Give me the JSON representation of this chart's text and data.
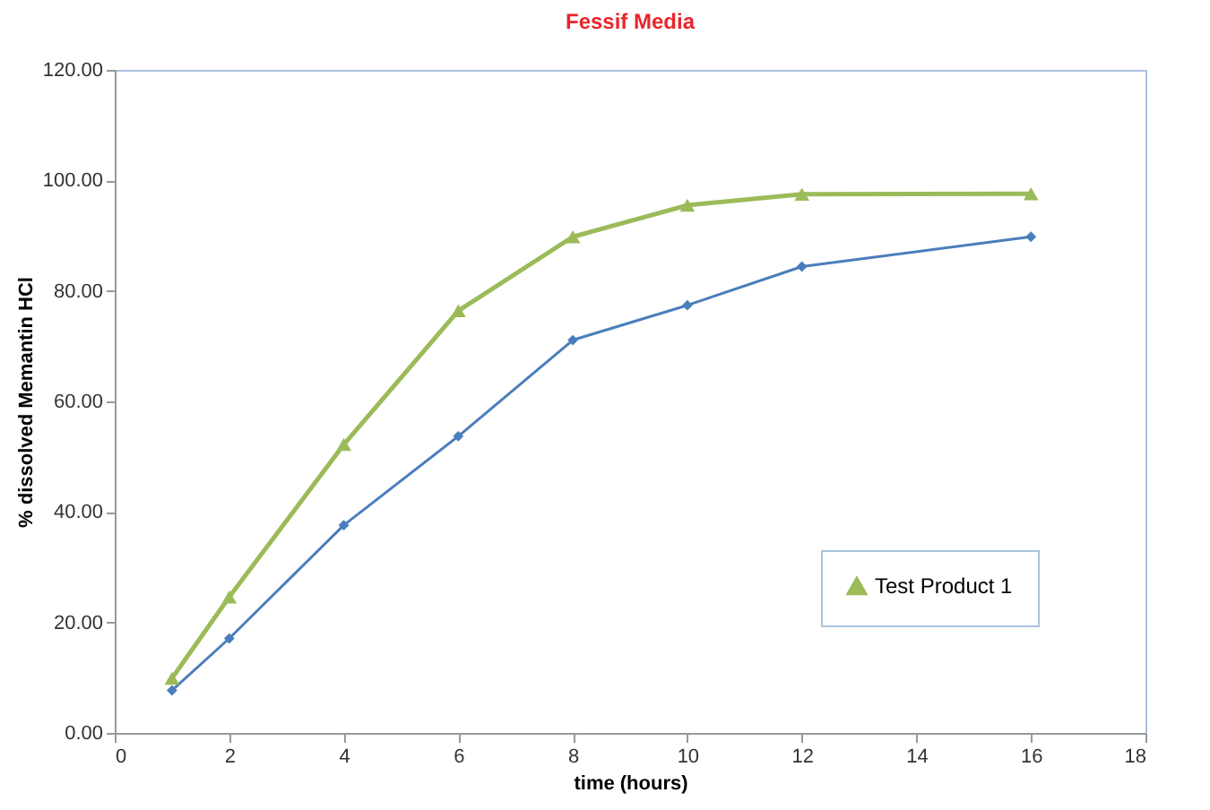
{
  "chart_data": {
    "type": "line",
    "title": "Fessif Media",
    "xlabel": "time (hours)",
    "ylabel": "% dissolved Memantin HCl",
    "x": [
      1,
      2,
      4,
      6,
      8,
      10,
      12,
      16
    ],
    "series": [
      {
        "color": "#4a7ebb",
        "marker": "diamond",
        "values": [
          7.7,
          17.1,
          37.6,
          53.7,
          71.1,
          77.4,
          84.4,
          89.8
        ]
      },
      {
        "name": "Test Product 1",
        "color": "#9bbb59",
        "marker": "triangle",
        "values": [
          9.9,
          24.6,
          52.2,
          76.4,
          89.8,
          95.5,
          97.5,
          97.6
        ]
      }
    ],
    "xlim": [
      0,
      18
    ],
    "xticks": [
      0,
      2,
      4,
      6,
      8,
      10,
      12,
      14,
      16,
      18
    ],
    "ylim": [
      0,
      120
    ],
    "yticks": [
      {
        "value": 0,
        "label": "0.00"
      },
      {
        "value": 20,
        "label": "20.00"
      },
      {
        "value": 40,
        "label": "40.00"
      },
      {
        "value": 60,
        "label": "60.00"
      },
      {
        "value": 80,
        "label": "80.00"
      },
      {
        "value": 100,
        "label": "100.00"
      },
      {
        "value": 120,
        "label": "120.00"
      }
    ],
    "grid": false,
    "legend": "bottom right",
    "line_style": "solid"
  }
}
